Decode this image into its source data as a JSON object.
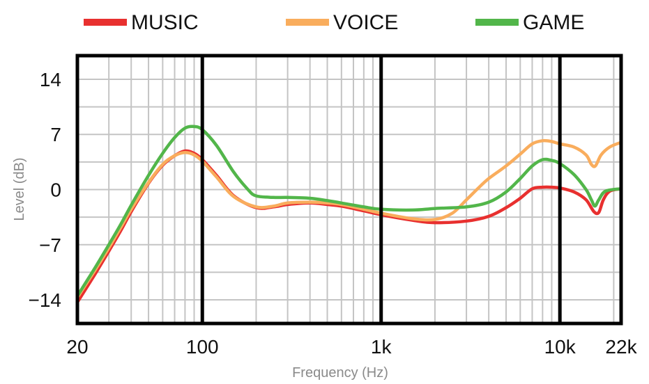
{
  "chart_data": {
    "type": "line",
    "title": "",
    "xlabel": "Frequency (Hz)",
    "ylabel": "Level (dB)",
    "xscale": "log",
    "xlim": [
      20,
      22000
    ],
    "ylim": [
      -17,
      17
    ],
    "grid": true,
    "legend_position": "top",
    "x_ticks": [
      {
        "value": 20,
        "label": "20"
      },
      {
        "value": 100,
        "label": "100"
      },
      {
        "value": 1000,
        "label": "1k"
      },
      {
        "value": 10000,
        "label": "10k"
      },
      {
        "value": 22000,
        "label": "22k"
      }
    ],
    "y_ticks": [
      {
        "value": 14,
        "label": "14"
      },
      {
        "value": 7,
        "label": "7"
      },
      {
        "value": 0,
        "label": "0"
      },
      {
        "value": -7,
        "label": "−7"
      },
      {
        "value": -14,
        "label": "−14"
      }
    ],
    "series": [
      {
        "name": "MUSIC",
        "color": "#e8302f",
        "points": [
          [
            20,
            -14.3
          ],
          [
            25,
            -10.8
          ],
          [
            30,
            -7.8
          ],
          [
            35,
            -5.2
          ],
          [
            40,
            -2.8
          ],
          [
            50,
            0.8
          ],
          [
            60,
            3.1
          ],
          [
            70,
            4.3
          ],
          [
            80,
            4.9
          ],
          [
            90,
            4.6
          ],
          [
            100,
            3.8
          ],
          [
            120,
            1.8
          ],
          [
            150,
            -0.8
          ],
          [
            200,
            -2.3
          ],
          [
            250,
            -2.2
          ],
          [
            300,
            -1.9
          ],
          [
            400,
            -1.7
          ],
          [
            500,
            -1.9
          ],
          [
            600,
            -2.1
          ],
          [
            800,
            -2.7
          ],
          [
            1000,
            -3.2
          ],
          [
            1500,
            -3.9
          ],
          [
            2000,
            -4.2
          ],
          [
            3000,
            -4.0
          ],
          [
            4000,
            -3.4
          ],
          [
            5000,
            -2.3
          ],
          [
            6000,
            -1.1
          ],
          [
            7000,
            0.1
          ],
          [
            8000,
            0.3
          ],
          [
            9000,
            0.3
          ],
          [
            10000,
            0.2
          ],
          [
            12000,
            -0.3
          ],
          [
            14000,
            -1.3
          ],
          [
            15500,
            -2.8
          ],
          [
            16500,
            -2.9
          ],
          [
            17500,
            -1.3
          ],
          [
            19000,
            -0.2
          ],
          [
            22000,
            0.1
          ]
        ]
      },
      {
        "name": "VOICE",
        "color": "#f9ad5d",
        "points": [
          [
            20,
            -13.7
          ],
          [
            25,
            -10.3
          ],
          [
            30,
            -7.4
          ],
          [
            35,
            -4.8
          ],
          [
            40,
            -2.5
          ],
          [
            50,
            0.9
          ],
          [
            60,
            3.2
          ],
          [
            70,
            4.3
          ],
          [
            80,
            4.7
          ],
          [
            90,
            4.4
          ],
          [
            100,
            3.6
          ],
          [
            120,
            1.6
          ],
          [
            150,
            -0.9
          ],
          [
            200,
            -2.2
          ],
          [
            250,
            -2.1
          ],
          [
            300,
            -1.7
          ],
          [
            400,
            -1.6
          ],
          [
            500,
            -1.7
          ],
          [
            600,
            -1.9
          ],
          [
            800,
            -2.5
          ],
          [
            1000,
            -3.0
          ],
          [
            1500,
            -3.7
          ],
          [
            2000,
            -3.8
          ],
          [
            2500,
            -3.0
          ],
          [
            3000,
            -1.3
          ],
          [
            3500,
            0.2
          ],
          [
            4000,
            1.4
          ],
          [
            5000,
            3.0
          ],
          [
            6000,
            4.5
          ],
          [
            7000,
            5.8
          ],
          [
            8000,
            6.2
          ],
          [
            9000,
            6.1
          ],
          [
            10000,
            5.8
          ],
          [
            12000,
            5.4
          ],
          [
            14000,
            4.4
          ],
          [
            15000,
            3.2
          ],
          [
            15800,
            3.0
          ],
          [
            17000,
            4.4
          ],
          [
            19000,
            5.4
          ],
          [
            22000,
            6.0
          ]
        ]
      },
      {
        "name": "GAME",
        "color": "#52b64a",
        "points": [
          [
            20,
            -13.5
          ],
          [
            25,
            -10.0
          ],
          [
            30,
            -7.0
          ],
          [
            35,
            -4.4
          ],
          [
            40,
            -2.0
          ],
          [
            50,
            1.8
          ],
          [
            60,
            4.6
          ],
          [
            70,
            6.6
          ],
          [
            80,
            7.8
          ],
          [
            90,
            8.0
          ],
          [
            100,
            7.6
          ],
          [
            120,
            5.6
          ],
          [
            150,
            2.2
          ],
          [
            180,
            0.0
          ],
          [
            200,
            -0.8
          ],
          [
            250,
            -1.0
          ],
          [
            300,
            -1.0
          ],
          [
            400,
            -1.1
          ],
          [
            500,
            -1.4
          ],
          [
            600,
            -1.7
          ],
          [
            800,
            -2.2
          ],
          [
            1000,
            -2.5
          ],
          [
            1500,
            -2.6
          ],
          [
            2000,
            -2.4
          ],
          [
            3000,
            -2.2
          ],
          [
            4000,
            -1.6
          ],
          [
            5000,
            -0.3
          ],
          [
            6000,
            1.4
          ],
          [
            7000,
            3.0
          ],
          [
            8000,
            3.8
          ],
          [
            9000,
            3.7
          ],
          [
            10000,
            3.3
          ],
          [
            12000,
            1.9
          ],
          [
            14000,
            0.0
          ],
          [
            15000,
            -1.3
          ],
          [
            15700,
            -2.1
          ],
          [
            16500,
            -1.3
          ],
          [
            18000,
            -0.2
          ],
          [
            22000,
            0.1
          ]
        ]
      }
    ]
  }
}
